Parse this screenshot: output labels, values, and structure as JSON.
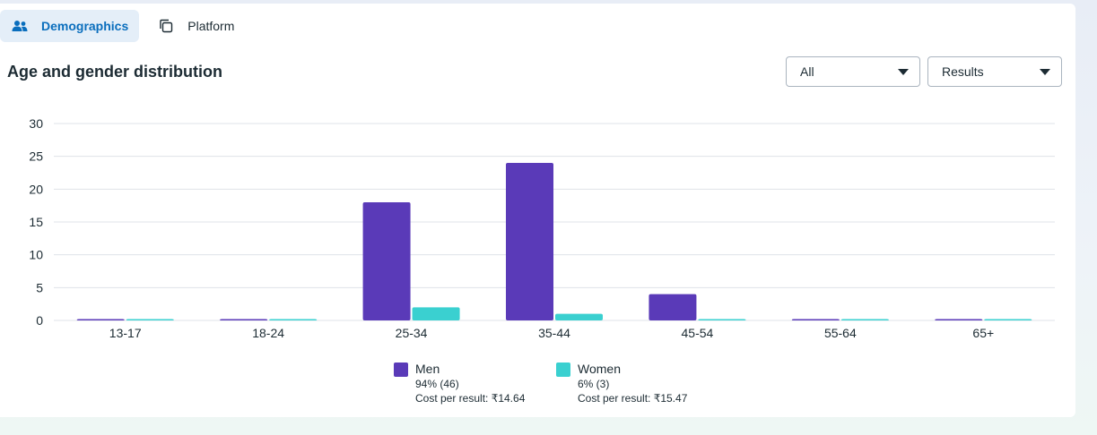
{
  "tabs": [
    {
      "label": "Demographics",
      "icon": "people-icon",
      "active": true
    },
    {
      "label": "Platform",
      "icon": "copy-icon",
      "active": false
    }
  ],
  "section_title": "Age and gender distribution",
  "filters": {
    "audience": {
      "value": "All"
    },
    "metric": {
      "value": "Results"
    }
  },
  "colors": {
    "men": "#5a3ab8",
    "women": "#3ad0d0",
    "accent": "#0a6ebd",
    "grid": "#dfe3e8"
  },
  "chart_data": {
    "type": "bar",
    "categories": [
      "13-17",
      "18-24",
      "25-34",
      "35-44",
      "45-54",
      "55-64",
      "65+"
    ],
    "series": [
      {
        "name": "Men",
        "values": [
          0,
          0,
          18,
          24,
          4,
          0,
          0
        ]
      },
      {
        "name": "Women",
        "values": [
          0,
          0,
          2,
          1,
          0,
          0,
          0
        ]
      }
    ],
    "ylim": [
      0,
      30
    ],
    "yticks": [
      0,
      5,
      10,
      15,
      20,
      25,
      30
    ],
    "grid": true,
    "legend_position": "bottom"
  },
  "legend": [
    {
      "name": "Men",
      "share": "94% (46)",
      "cost": "Cost per result: ₹14.64"
    },
    {
      "name": "Women",
      "share": "6% (3)",
      "cost": "Cost per result: ₹15.47"
    }
  ]
}
